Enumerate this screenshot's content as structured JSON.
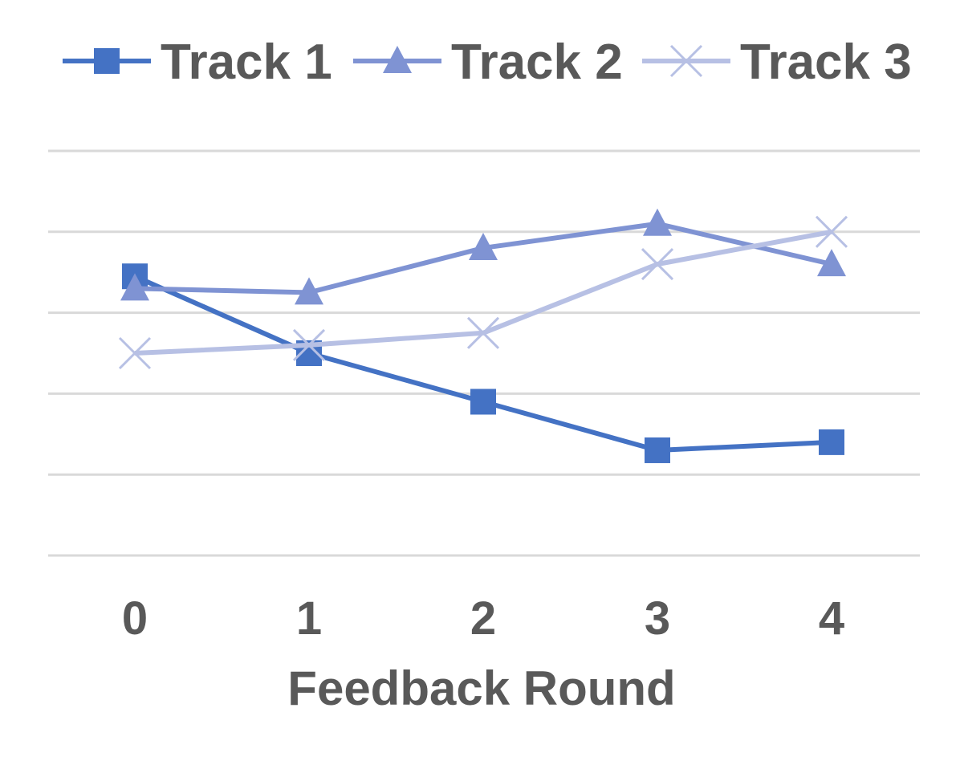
{
  "chart_data": {
    "type": "line",
    "title": "",
    "xlabel": "Feedback Round",
    "ylabel": "",
    "categories": [
      "0",
      "1",
      "2",
      "3",
      "4"
    ],
    "ylim": [
      0,
      5
    ],
    "y_tick_labels_visible": false,
    "grid": true,
    "legend": "top",
    "series": [
      {
        "name": "Track 1",
        "marker": "square",
        "color": "#4472c4",
        "values": [
          3.45,
          2.5,
          1.9,
          1.3,
          1.4
        ]
      },
      {
        "name": "Track 2",
        "marker": "triangle",
        "color": "#7f93d3",
        "values": [
          3.3,
          3.25,
          3.8,
          4.1,
          3.6
        ]
      },
      {
        "name": "Track 3",
        "marker": "x",
        "color": "#b7c0e4",
        "values": [
          2.5,
          2.6,
          2.75,
          3.6,
          4.0
        ]
      }
    ]
  }
}
